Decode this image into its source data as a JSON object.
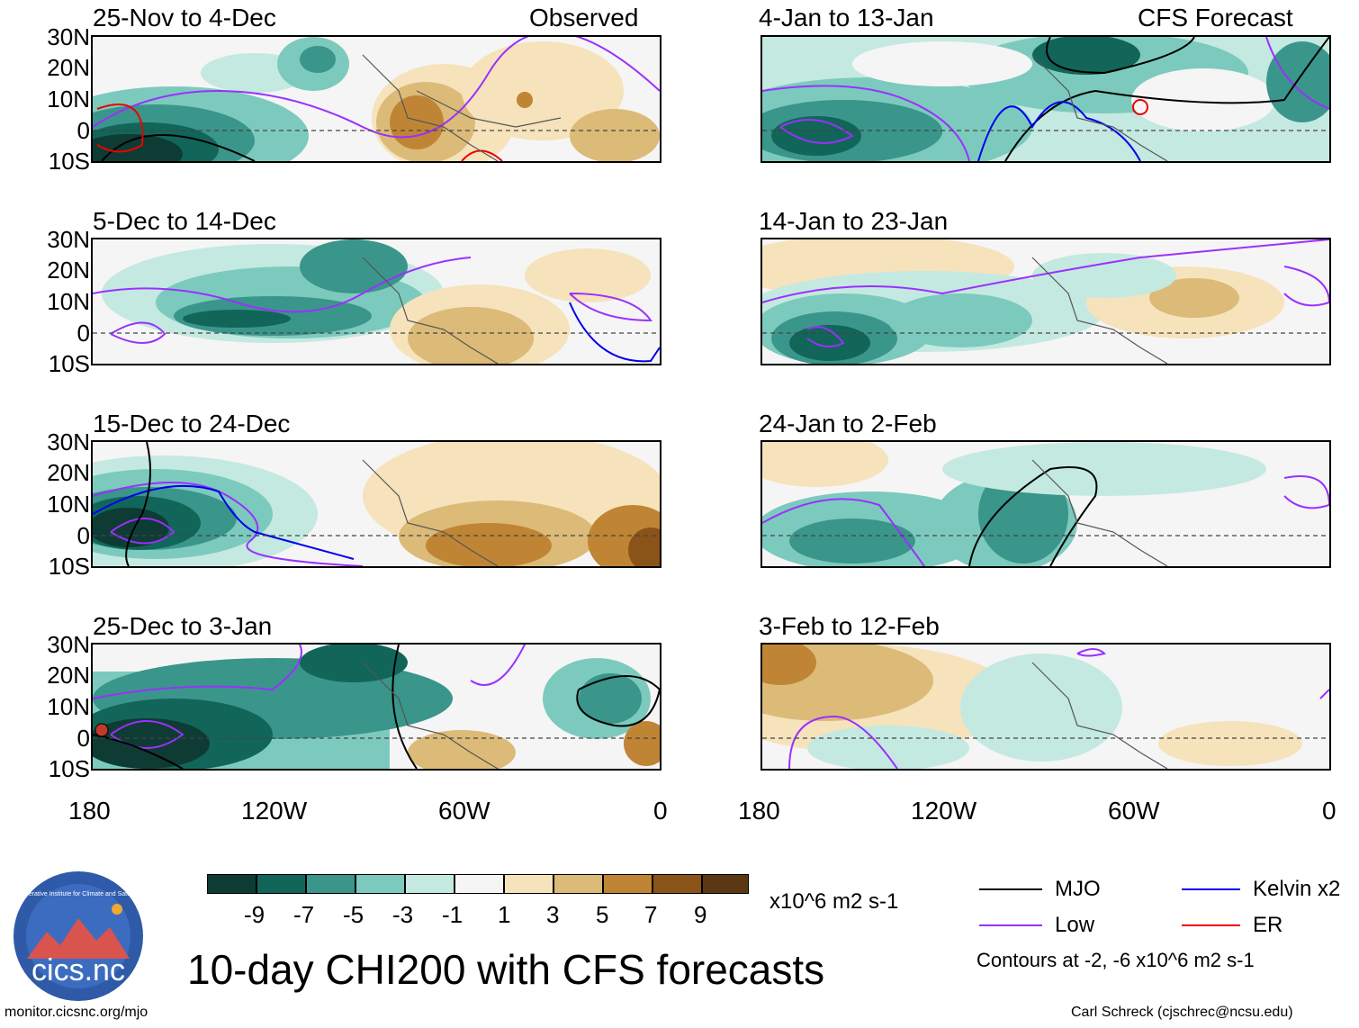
{
  "columns": {
    "left_label": "Observed",
    "right_label": "CFS Forecast"
  },
  "panels": {
    "left": [
      {
        "title": "25-Nov to 4-Dec"
      },
      {
        "title": "5-Dec to 14-Dec"
      },
      {
        "title": "15-Dec to 24-Dec"
      },
      {
        "title": "25-Dec to 3-Jan"
      }
    ],
    "right": [
      {
        "title": "4-Jan to 13-Jan"
      },
      {
        "title": "14-Jan to 23-Jan"
      },
      {
        "title": "24-Jan to 2-Feb"
      },
      {
        "title": "3-Feb to 12-Feb"
      }
    ]
  },
  "axes": {
    "lat_labels": [
      "30N",
      "20N",
      "10N",
      "0",
      "10S"
    ],
    "lon_labels": [
      "180",
      "120W",
      "60W",
      "0"
    ]
  },
  "colorbar": {
    "ticks": [
      "-9",
      "-7",
      "-5",
      "-3",
      "-1",
      "1",
      "3",
      "5",
      "7",
      "9"
    ],
    "colors": [
      "#0e3b33",
      "#116659",
      "#3a958a",
      "#7ccabd",
      "#c4e9e1",
      "#f5f5f5",
      "#f6e3bb",
      "#dcba78",
      "#bf8535",
      "#8a5418",
      "#5b3812"
    ],
    "units": "x10^6 m2 s-1"
  },
  "legend": {
    "items": [
      {
        "label": "MJO",
        "color": "#000000"
      },
      {
        "label": "Kelvin x2",
        "color": "#0000ee"
      },
      {
        "label": "Low",
        "color": "#9b30ff"
      },
      {
        "label": "ER",
        "color": "#ee0000"
      }
    ],
    "contours_note": "Contours at -2, -6 x10^6 m2 s-1"
  },
  "main_title": "10-day CHI200 with CFS forecasts",
  "logo": {
    "text": "cics.nc",
    "ring_text": "Cooperative Institute for Climate and Satellites"
  },
  "footer": {
    "left": "monitor.cicsnc.org/mjo",
    "right": "Carl Schreck (cjschrec@ncsu.edu)"
  }
}
